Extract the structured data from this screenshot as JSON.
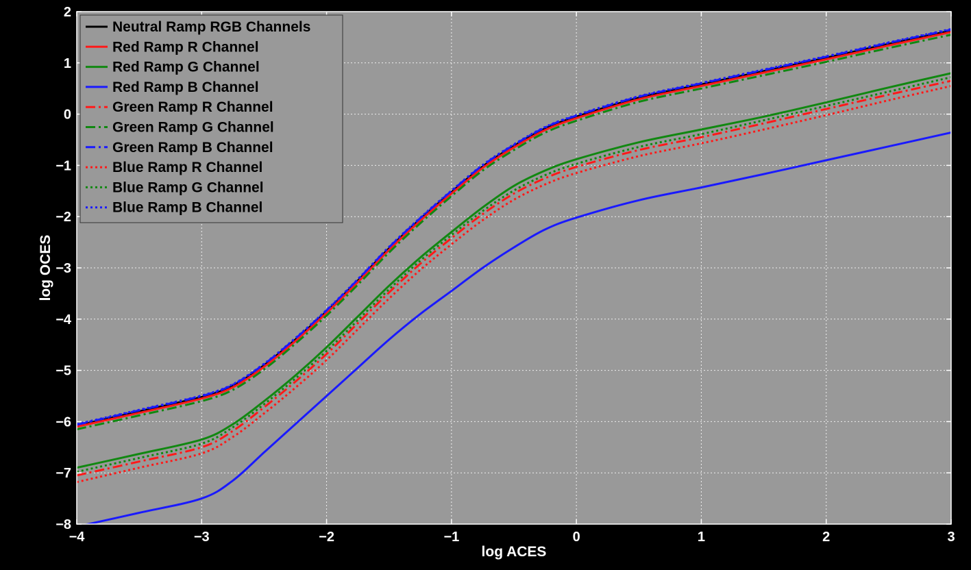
{
  "chart_data": {
    "type": "line",
    "title": "",
    "xlabel": "log ACES",
    "ylabel": "log OCES",
    "xlim": [
      -4,
      3
    ],
    "ylim": [
      -8,
      2
    ],
    "x_ticks": [
      -4,
      -3,
      -2,
      -1,
      0,
      1,
      2,
      3
    ],
    "y_ticks": [
      -8,
      -7,
      -6,
      -5,
      -4,
      -3,
      -2,
      -1,
      0,
      1,
      2
    ],
    "grid": true,
    "legend_position": "top-left",
    "background": "#999999",
    "x": [
      -4,
      -3.5,
      -3,
      -2.75,
      -2.5,
      -2.25,
      -2,
      -1.75,
      -1.5,
      -1.25,
      -1,
      -0.75,
      -0.5,
      -0.25,
      0,
      0.5,
      1,
      1.5,
      2,
      2.5,
      3
    ],
    "series": [
      {
        "name": "Neutral Ramp RGB Channels",
        "color": "#000000",
        "dash": "solid",
        "values": [
          -6.08,
          -5.8,
          -5.52,
          -5.3,
          -4.9,
          -4.4,
          -3.85,
          -3.25,
          -2.62,
          -2.05,
          -1.52,
          -1.02,
          -0.62,
          -0.28,
          -0.05,
          0.32,
          0.58,
          0.84,
          1.1,
          1.37,
          1.63
        ]
      },
      {
        "name": "Red Ramp R Channel",
        "color": "#ff1a1a",
        "dash": "solid",
        "values": [
          -6.1,
          -5.83,
          -5.55,
          -5.33,
          -4.93,
          -4.43,
          -3.88,
          -3.28,
          -2.65,
          -2.08,
          -1.55,
          -1.05,
          -0.65,
          -0.31,
          -0.08,
          0.29,
          0.55,
          0.81,
          1.07,
          1.34,
          1.6
        ]
      },
      {
        "name": "Red Ramp G Channel",
        "color": "#118811",
        "dash": "solid",
        "values": [
          -6.9,
          -6.63,
          -6.35,
          -6.05,
          -5.6,
          -5.1,
          -4.55,
          -3.95,
          -3.35,
          -2.8,
          -2.3,
          -1.82,
          -1.4,
          -1.1,
          -0.88,
          -0.55,
          -0.3,
          -0.05,
          0.23,
          0.52,
          0.8
        ]
      },
      {
        "name": "Red Ramp B Channel",
        "color": "#1a1aff",
        "dash": "solid",
        "values": [
          -8.05,
          -7.78,
          -7.5,
          -7.15,
          -6.6,
          -6.05,
          -5.5,
          -4.95,
          -4.4,
          -3.9,
          -3.45,
          -3.0,
          -2.6,
          -2.25,
          -2.02,
          -1.68,
          -1.43,
          -1.17,
          -0.9,
          -0.63,
          -0.36
        ]
      },
      {
        "name": "Green Ramp R Channel",
        "color": "#ff1a1a",
        "dash": "dashdot",
        "values": [
          -7.05,
          -6.78,
          -6.5,
          -6.18,
          -5.72,
          -5.22,
          -4.68,
          -4.08,
          -3.48,
          -2.92,
          -2.42,
          -1.95,
          -1.55,
          -1.25,
          -1.03,
          -0.7,
          -0.45,
          -0.18,
          0.1,
          0.38,
          0.65
        ]
      },
      {
        "name": "Green Ramp G Channel",
        "color": "#118811",
        "dash": "dashdot",
        "values": [
          -6.15,
          -5.88,
          -5.6,
          -5.38,
          -4.98,
          -4.48,
          -3.93,
          -3.33,
          -2.7,
          -2.13,
          -1.6,
          -1.1,
          -0.7,
          -0.36,
          -0.13,
          0.24,
          0.5,
          0.76,
          1.02,
          1.29,
          1.55
        ]
      },
      {
        "name": "Green Ramp B Channel",
        "color": "#1a1aff",
        "dash": "dashdot",
        "values": [
          -6.06,
          -5.78,
          -5.5,
          -5.28,
          -4.88,
          -4.38,
          -3.83,
          -3.23,
          -2.6,
          -2.03,
          -1.5,
          -1.0,
          -0.6,
          -0.26,
          -0.03,
          0.34,
          0.6,
          0.86,
          1.12,
          1.39,
          1.65
        ]
      },
      {
        "name": "Blue Ramp R Channel",
        "color": "#ff1a1a",
        "dash": "dotted",
        "values": [
          -7.18,
          -6.9,
          -6.62,
          -6.3,
          -5.84,
          -5.34,
          -4.8,
          -4.2,
          -3.6,
          -3.04,
          -2.54,
          -2.07,
          -1.67,
          -1.37,
          -1.15,
          -0.82,
          -0.57,
          -0.3,
          -0.02,
          0.27,
          0.55
        ]
      },
      {
        "name": "Blue Ramp G Channel",
        "color": "#118811",
        "dash": "dotted",
        "values": [
          -6.98,
          -6.71,
          -6.43,
          -6.11,
          -5.66,
          -5.16,
          -4.62,
          -4.02,
          -3.42,
          -2.86,
          -2.36,
          -1.89,
          -1.49,
          -1.19,
          -0.97,
          -0.64,
          -0.39,
          -0.12,
          0.16,
          0.44,
          0.72
        ]
      },
      {
        "name": "Blue Ramp B Channel",
        "color": "#1a1aff",
        "dash": "dotted",
        "values": [
          -6.05,
          -5.77,
          -5.49,
          -5.27,
          -4.87,
          -4.37,
          -3.82,
          -3.22,
          -2.59,
          -2.02,
          -1.49,
          -0.99,
          -0.59,
          -0.25,
          -0.02,
          0.35,
          0.61,
          0.87,
          1.13,
          1.4,
          1.66
        ]
      }
    ]
  }
}
